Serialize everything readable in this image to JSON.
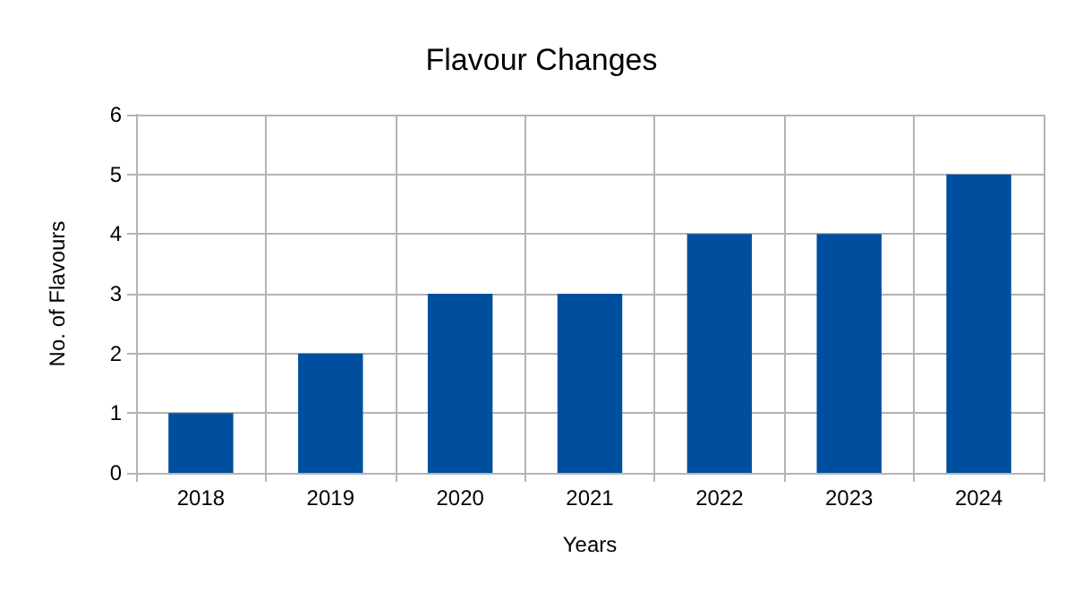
{
  "chart_data": {
    "type": "bar",
    "title": "Flavour Changes",
    "xlabel": "Years",
    "ylabel": "No. of Flavours",
    "categories": [
      "2018",
      "2019",
      "2020",
      "2021",
      "2022",
      "2023",
      "2024"
    ],
    "values": [
      1,
      2,
      3,
      3,
      4,
      4,
      5
    ],
    "color": "#004f9f",
    "ylim": [
      0,
      6
    ],
    "yticks": [
      0,
      1,
      2,
      3,
      4,
      5,
      6
    ],
    "grid": true
  }
}
